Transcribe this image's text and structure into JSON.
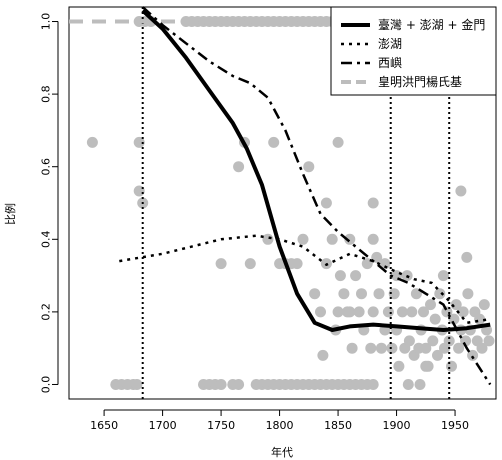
{
  "chart_data": {
    "type": "scatter",
    "xlabel": "年代",
    "ylabel": "比例",
    "xlim": [
      1620,
      1985
    ],
    "ylim": [
      -0.04,
      1.04
    ],
    "x_ticks": [
      "1650",
      "1700",
      "1750",
      "1800",
      "1850",
      "1900",
      "1950"
    ],
    "y_ticks": [
      "0.0",
      "0.2",
      "0.4",
      "0.6",
      "0.8",
      "1.0"
    ],
    "legend_position": "top-right",
    "vertical_reference_lines": [
      1683,
      1895,
      1945
    ],
    "horizontal_reference_line": 1.0,
    "point_color": "#bdbdbd",
    "line_color": "#000000",
    "legend": [
      {
        "label": "臺灣 + 澎湖 + 金門",
        "style": "solid"
      },
      {
        "label": "澎湖",
        "style": "dotted"
      },
      {
        "label": "西嶼",
        "style": "dotdash"
      },
      {
        "label": "皇明洪門楊氏基",
        "style": "gray-dashed"
      }
    ],
    "series": [
      {
        "style": "solid",
        "x": [
          1683,
          1700,
          1720,
          1740,
          1760,
          1772,
          1785,
          1800,
          1815,
          1830,
          1845,
          1860,
          1880,
          1900,
          1920,
          1940,
          1960,
          1980
        ],
        "y": [
          1.03,
          0.98,
          0.9,
          0.81,
          0.72,
          0.65,
          0.55,
          0.38,
          0.25,
          0.17,
          0.15,
          0.16,
          0.165,
          0.16,
          0.155,
          0.15,
          0.155,
          0.165
        ]
      },
      {
        "style": "dotted",
        "x": [
          1663,
          1700,
          1750,
          1780,
          1800,
          1820,
          1840,
          1860,
          1880,
          1900,
          1915,
          1930,
          1945,
          1960,
          1980
        ],
        "y": [
          0.34,
          0.36,
          0.4,
          0.41,
          0.4,
          0.38,
          0.33,
          0.36,
          0.34,
          0.31,
          0.29,
          0.28,
          0.23,
          0.17,
          0.18
        ]
      },
      {
        "style": "dotdash",
        "x": [
          1683,
          1700,
          1720,
          1740,
          1760,
          1775,
          1790,
          1805,
          1820,
          1835,
          1850,
          1865,
          1880,
          1895,
          1910,
          1925,
          1940,
          1950,
          1960,
          1970,
          1980
        ],
        "y": [
          1.04,
          0.99,
          0.94,
          0.89,
          0.85,
          0.83,
          0.79,
          0.7,
          0.58,
          0.47,
          0.42,
          0.38,
          0.34,
          0.3,
          0.28,
          0.25,
          0.22,
          0.16,
          0.1,
          0.05,
          0.0
        ]
      },
      {
        "style": "gray-dashed",
        "x": [
          1620,
          1985
        ],
        "y": [
          1.0,
          1.0
        ]
      }
    ],
    "points": [
      [
        1640,
        0.667
      ],
      [
        1660,
        0.0
      ],
      [
        1665,
        0.0
      ],
      [
        1670,
        0.0
      ],
      [
        1675,
        0.0
      ],
      [
        1678,
        0.0
      ],
      [
        1680,
        0.667
      ],
      [
        1680,
        0.533
      ],
      [
        1683,
        0.5
      ],
      [
        1680,
        1.0
      ],
      [
        1685,
        1.0
      ],
      [
        1690,
        1.0
      ],
      [
        1720,
        1.0
      ],
      [
        1725,
        1.0
      ],
      [
        1730,
        1.0
      ],
      [
        1735,
        1.0
      ],
      [
        1740,
        1.0
      ],
      [
        1745,
        1.0
      ],
      [
        1750,
        1.0
      ],
      [
        1755,
        1.0
      ],
      [
        1760,
        1.0
      ],
      [
        1765,
        1.0
      ],
      [
        1770,
        1.0
      ],
      [
        1775,
        1.0
      ],
      [
        1780,
        1.0
      ],
      [
        1785,
        1.0
      ],
      [
        1790,
        1.0
      ],
      [
        1795,
        1.0
      ],
      [
        1800,
        1.0
      ],
      [
        1805,
        1.0
      ],
      [
        1810,
        1.0
      ],
      [
        1815,
        1.0
      ],
      [
        1820,
        1.0
      ],
      [
        1825,
        1.0
      ],
      [
        1830,
        1.0
      ],
      [
        1835,
        1.0
      ],
      [
        1840,
        1.0
      ],
      [
        1845,
        1.0
      ],
      [
        1850,
        1.0
      ],
      [
        1855,
        1.0
      ],
      [
        1860,
        1.0
      ],
      [
        1865,
        1.0
      ],
      [
        1870,
        1.0
      ],
      [
        1875,
        1.0
      ],
      [
        1880,
        1.0
      ],
      [
        1885,
        1.0
      ],
      [
        1890,
        1.0
      ],
      [
        1895,
        1.0
      ],
      [
        1735,
        0.0
      ],
      [
        1740,
        0.0
      ],
      [
        1745,
        0.0
      ],
      [
        1750,
        0.0
      ],
      [
        1760,
        0.0
      ],
      [
        1765,
        0.0
      ],
      [
        1780,
        0.0
      ],
      [
        1785,
        0.0
      ],
      [
        1790,
        0.0
      ],
      [
        1795,
        0.0
      ],
      [
        1800,
        0.0
      ],
      [
        1805,
        0.0
      ],
      [
        1810,
        0.0
      ],
      [
        1815,
        0.0
      ],
      [
        1820,
        0.0
      ],
      [
        1825,
        0.0
      ],
      [
        1830,
        0.0
      ],
      [
        1835,
        0.0
      ],
      [
        1840,
        0.0
      ],
      [
        1845,
        0.0
      ],
      [
        1850,
        0.0
      ],
      [
        1855,
        0.0
      ],
      [
        1860,
        0.0
      ],
      [
        1865,
        0.0
      ],
      [
        1870,
        0.0
      ],
      [
        1875,
        0.0
      ],
      [
        1880,
        0.0
      ],
      [
        1750,
        0.333
      ],
      [
        1765,
        0.6
      ],
      [
        1770,
        0.667
      ],
      [
        1775,
        0.333
      ],
      [
        1790,
        0.4
      ],
      [
        1795,
        0.667
      ],
      [
        1800,
        0.333
      ],
      [
        1805,
        0.333
      ],
      [
        1810,
        0.333
      ],
      [
        1815,
        0.333
      ],
      [
        1820,
        0.4
      ],
      [
        1825,
        0.6
      ],
      [
        1830,
        0.25
      ],
      [
        1835,
        0.2
      ],
      [
        1840,
        0.333
      ],
      [
        1840,
        0.5
      ],
      [
        1845,
        0.4
      ],
      [
        1850,
        0.667
      ],
      [
        1850,
        0.2
      ],
      [
        1855,
        0.25
      ],
      [
        1860,
        0.4
      ],
      [
        1860,
        0.2
      ],
      [
        1865,
        0.3
      ],
      [
        1870,
        0.25
      ],
      [
        1875,
        0.333
      ],
      [
        1880,
        0.5
      ],
      [
        1880,
        0.4
      ],
      [
        1880,
        0.2
      ],
      [
        1885,
        0.25
      ],
      [
        1890,
        0.333
      ],
      [
        1890,
        0.15
      ],
      [
        1837,
        0.08
      ],
      [
        1848,
        0.15
      ],
      [
        1852,
        0.3
      ],
      [
        1858,
        0.2
      ],
      [
        1862,
        0.1
      ],
      [
        1868,
        0.2
      ],
      [
        1872,
        0.15
      ],
      [
        1878,
        0.1
      ],
      [
        1883,
        0.35
      ],
      [
        1887,
        0.1
      ],
      [
        1893,
        0.2
      ],
      [
        1896,
        0.1
      ],
      [
        1898,
        0.25
      ],
      [
        1900,
        0.15
      ],
      [
        1902,
        0.05
      ],
      [
        1905,
        0.2
      ],
      [
        1907,
        0.1
      ],
      [
        1909,
        0.3
      ],
      [
        1911,
        0.12
      ],
      [
        1913,
        0.2
      ],
      [
        1915,
        0.08
      ],
      [
        1917,
        0.25
      ],
      [
        1919,
        0.1
      ],
      [
        1921,
        0.15
      ],
      [
        1923,
        0.2
      ],
      [
        1925,
        0.1
      ],
      [
        1927,
        0.05
      ],
      [
        1929,
        0.22
      ],
      [
        1931,
        0.12
      ],
      [
        1933,
        0.18
      ],
      [
        1935,
        0.08
      ],
      [
        1937,
        0.25
      ],
      [
        1939,
        0.15
      ],
      [
        1941,
        0.1
      ],
      [
        1943,
        0.2
      ],
      [
        1945,
        0.12
      ],
      [
        1947,
        0.05
      ],
      [
        1949,
        0.18
      ],
      [
        1951,
        0.22
      ],
      [
        1953,
        0.1
      ],
      [
        1955,
        0.15
      ],
      [
        1957,
        0.2
      ],
      [
        1959,
        0.12
      ],
      [
        1961,
        0.25
      ],
      [
        1963,
        0.15
      ],
      [
        1965,
        0.08
      ],
      [
        1967,
        0.2
      ],
      [
        1969,
        0.12
      ],
      [
        1971,
        0.18
      ],
      [
        1973,
        0.1
      ],
      [
        1975,
        0.22
      ],
      [
        1977,
        0.15
      ],
      [
        1979,
        0.12
      ],
      [
        1955,
        0.533
      ],
      [
        1910,
        0.0
      ],
      [
        1920,
        0.0
      ],
      [
        1900,
        0.3
      ],
      [
        1925,
        0.05
      ],
      [
        1960,
        0.35
      ],
      [
        1940,
        0.3
      ]
    ]
  }
}
